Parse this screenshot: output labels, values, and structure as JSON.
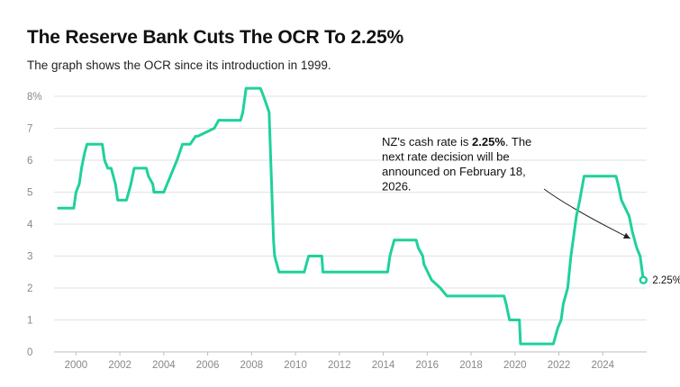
{
  "header": {
    "title": "The Reserve Bank Cuts The OCR To 2.25%",
    "subtitle": "The graph shows the OCR since its introduction in 1999."
  },
  "colors": {
    "line": "#1fd19c",
    "grid": "#e2e2e2",
    "axis": "#888888",
    "text": "#111111"
  },
  "chart_data": {
    "type": "line",
    "title": "The Reserve Bank Cuts The OCR To 2.25%",
    "subtitle": "The graph shows the OCR since its introduction in 1999.",
    "xlabel": "",
    "ylabel": "",
    "xlim": [
      1999,
      2026
    ],
    "ylim": [
      0,
      8
    ],
    "grid": true,
    "yticks": [
      0,
      1,
      2,
      3,
      4,
      5,
      6,
      7,
      8
    ],
    "ytick_labels": [
      "0",
      "1",
      "2",
      "3",
      "4",
      "5",
      "6",
      "7",
      "8%"
    ],
    "xticks": [
      2000,
      2002,
      2004,
      2006,
      2008,
      2010,
      2012,
      2014,
      2016,
      2018,
      2020,
      2022,
      2024
    ],
    "xtick_labels": [
      "2000",
      "2002",
      "2004",
      "2006",
      "2008",
      "2010",
      "2012",
      "2014",
      "2016",
      "2018",
      "2020",
      "2022",
      "2024"
    ],
    "series": [
      {
        "name": "OCR",
        "x": [
          1999.2,
          1999.9,
          2000.0,
          2000.15,
          2000.25,
          2000.4,
          2000.5,
          2001.2,
          2001.3,
          2001.45,
          2001.6,
          2001.8,
          2001.9,
          2002.3,
          2002.4,
          2002.5,
          2002.65,
          2003.2,
          2003.3,
          2003.5,
          2003.55,
          2004.0,
          2004.15,
          2004.3,
          2004.45,
          2004.6,
          2004.85,
          2005.2,
          2005.45,
          2005.55,
          2006.3,
          2006.5,
          2007.5,
          2007.6,
          2007.75,
          2008.4,
          2008.55,
          2008.8,
          2008.85,
          2009.0,
          2009.05,
          2009.25,
          2010.4,
          2010.6,
          2011.2,
          2011.25,
          2014.2,
          2014.3,
          2014.5,
          2015.5,
          2015.6,
          2015.8,
          2015.85,
          2016.2,
          2016.6,
          2016.9,
          2019.5,
          2019.6,
          2019.75,
          2020.2,
          2020.25,
          2021.75,
          2021.95,
          2022.1,
          2022.2,
          2022.4,
          2022.55,
          2022.8,
          2022.95,
          2023.15,
          2023.4,
          2024.6,
          2024.7,
          2024.85,
          2025.2,
          2025.35,
          2025.55,
          2025.7,
          2025.85
        ],
        "y": [
          4.5,
          4.5,
          5.0,
          5.25,
          5.75,
          6.25,
          6.5,
          6.5,
          6.0,
          5.75,
          5.75,
          5.25,
          4.75,
          4.75,
          5.0,
          5.25,
          5.75,
          5.75,
          5.5,
          5.25,
          5.0,
          5.0,
          5.25,
          5.5,
          5.75,
          6.0,
          6.5,
          6.5,
          6.75,
          6.75,
          7.0,
          7.25,
          7.25,
          7.5,
          8.25,
          8.25,
          8.0,
          7.5,
          6.5,
          3.5,
          3.0,
          2.5,
          2.5,
          3.0,
          3.0,
          2.5,
          2.5,
          3.0,
          3.5,
          3.5,
          3.25,
          3.0,
          2.75,
          2.25,
          2.0,
          1.75,
          1.75,
          1.5,
          1.0,
          1.0,
          0.25,
          0.25,
          0.75,
          1.0,
          1.5,
          2.0,
          3.0,
          4.25,
          4.75,
          5.5,
          5.5,
          5.5,
          5.25,
          4.75,
          4.25,
          3.75,
          3.25,
          3.0,
          2.25
        ]
      }
    ],
    "annotations": [
      {
        "lines": [
          [
            {
              "text": "NZ's cash rate is ",
              "bold": false
            },
            {
              "text": "2.25%",
              "bold": true
            },
            {
              "text": ". The",
              "bold": false
            }
          ],
          [
            {
              "text": "next rate decision will be",
              "bold": false
            }
          ],
          [
            {
              "text": "announced on February 18,",
              "bold": false
            }
          ],
          [
            {
              "text": "2026.",
              "bold": false
            }
          ]
        ],
        "points_to": {
          "x": 2025.25,
          "y": 3.55
        }
      }
    ],
    "end_label": {
      "text": "2.25%",
      "x": 2025.85,
      "y": 2.25
    }
  }
}
